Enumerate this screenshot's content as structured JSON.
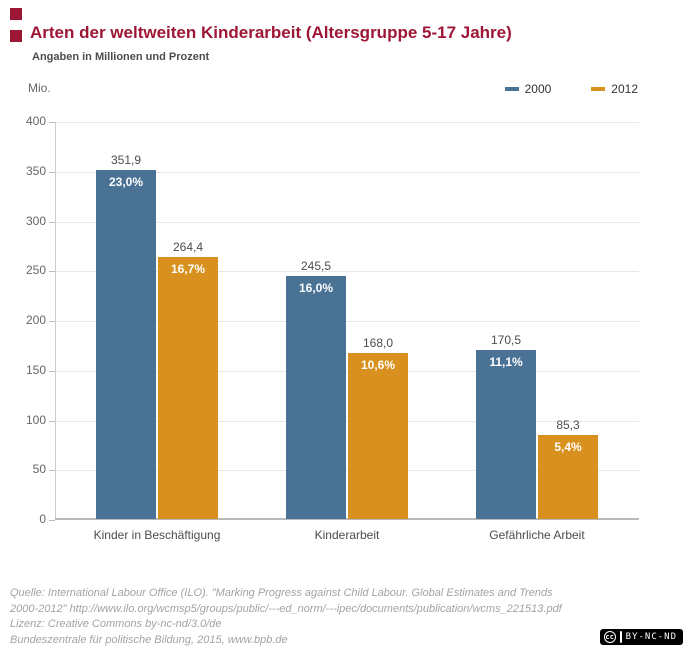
{
  "header": {
    "title": "Arten der weltweiten Kinderarbeit (Altersgruppe 5-17 Jahre)",
    "subtitle": "Angaben in Millionen und Prozent",
    "accent_color": "#9e1635"
  },
  "axis": {
    "unit_label": "Mio."
  },
  "chart_data": {
    "type": "bar",
    "title": "Arten der weltweiten Kinderarbeit (Altersgruppe 5-17 Jahre)",
    "subtitle": "Angaben in Millionen und Prozent",
    "unit_label": "Mio.",
    "categories": [
      "Kinder in Beschäftigung",
      "Kinderarbeit",
      "Gefährliche Arbeit"
    ],
    "series": [
      {
        "name": "2000",
        "color": "#4a7294",
        "values": [
          351.9,
          245.5,
          170.5
        ],
        "value_labels": [
          "351,9",
          "245,5",
          "170,5"
        ],
        "percent_labels": [
          "23,0%",
          "16,0%",
          "11,1%"
        ]
      },
      {
        "name": "2012",
        "color": "#d8911f",
        "values": [
          264.4,
          168.0,
          85.3
        ],
        "value_labels": [
          "264,4",
          "168,0",
          "85,3"
        ],
        "percent_labels": [
          "16,7%",
          "10,6%",
          "5,4%"
        ]
      }
    ],
    "xlabel": "",
    "ylabel": "Mio.",
    "ylim": [
      0,
      400
    ],
    "yticks": [
      0,
      50,
      100,
      150,
      200,
      250,
      300,
      350,
      400
    ],
    "grid": true,
    "legend_position": "top-right"
  },
  "footer": {
    "lines": [
      "Quelle: International Labour Office (ILO). \"Marking Progress against Child Labour. Global Estimates and Trends",
      "2000-2012\" http://www.ilo.org/wcmsp5/groups/public/---ed_norm/---ipec/documents/publication/wcms_221513.pdf",
      "Lizenz: Creative Commons by-nc-nd/3.0/de",
      "Bundeszentrale für politische Bildung, 2015, www.bpb.de"
    ]
  },
  "cc_badge": {
    "logo": "cc",
    "label": "BY-NC-ND"
  }
}
